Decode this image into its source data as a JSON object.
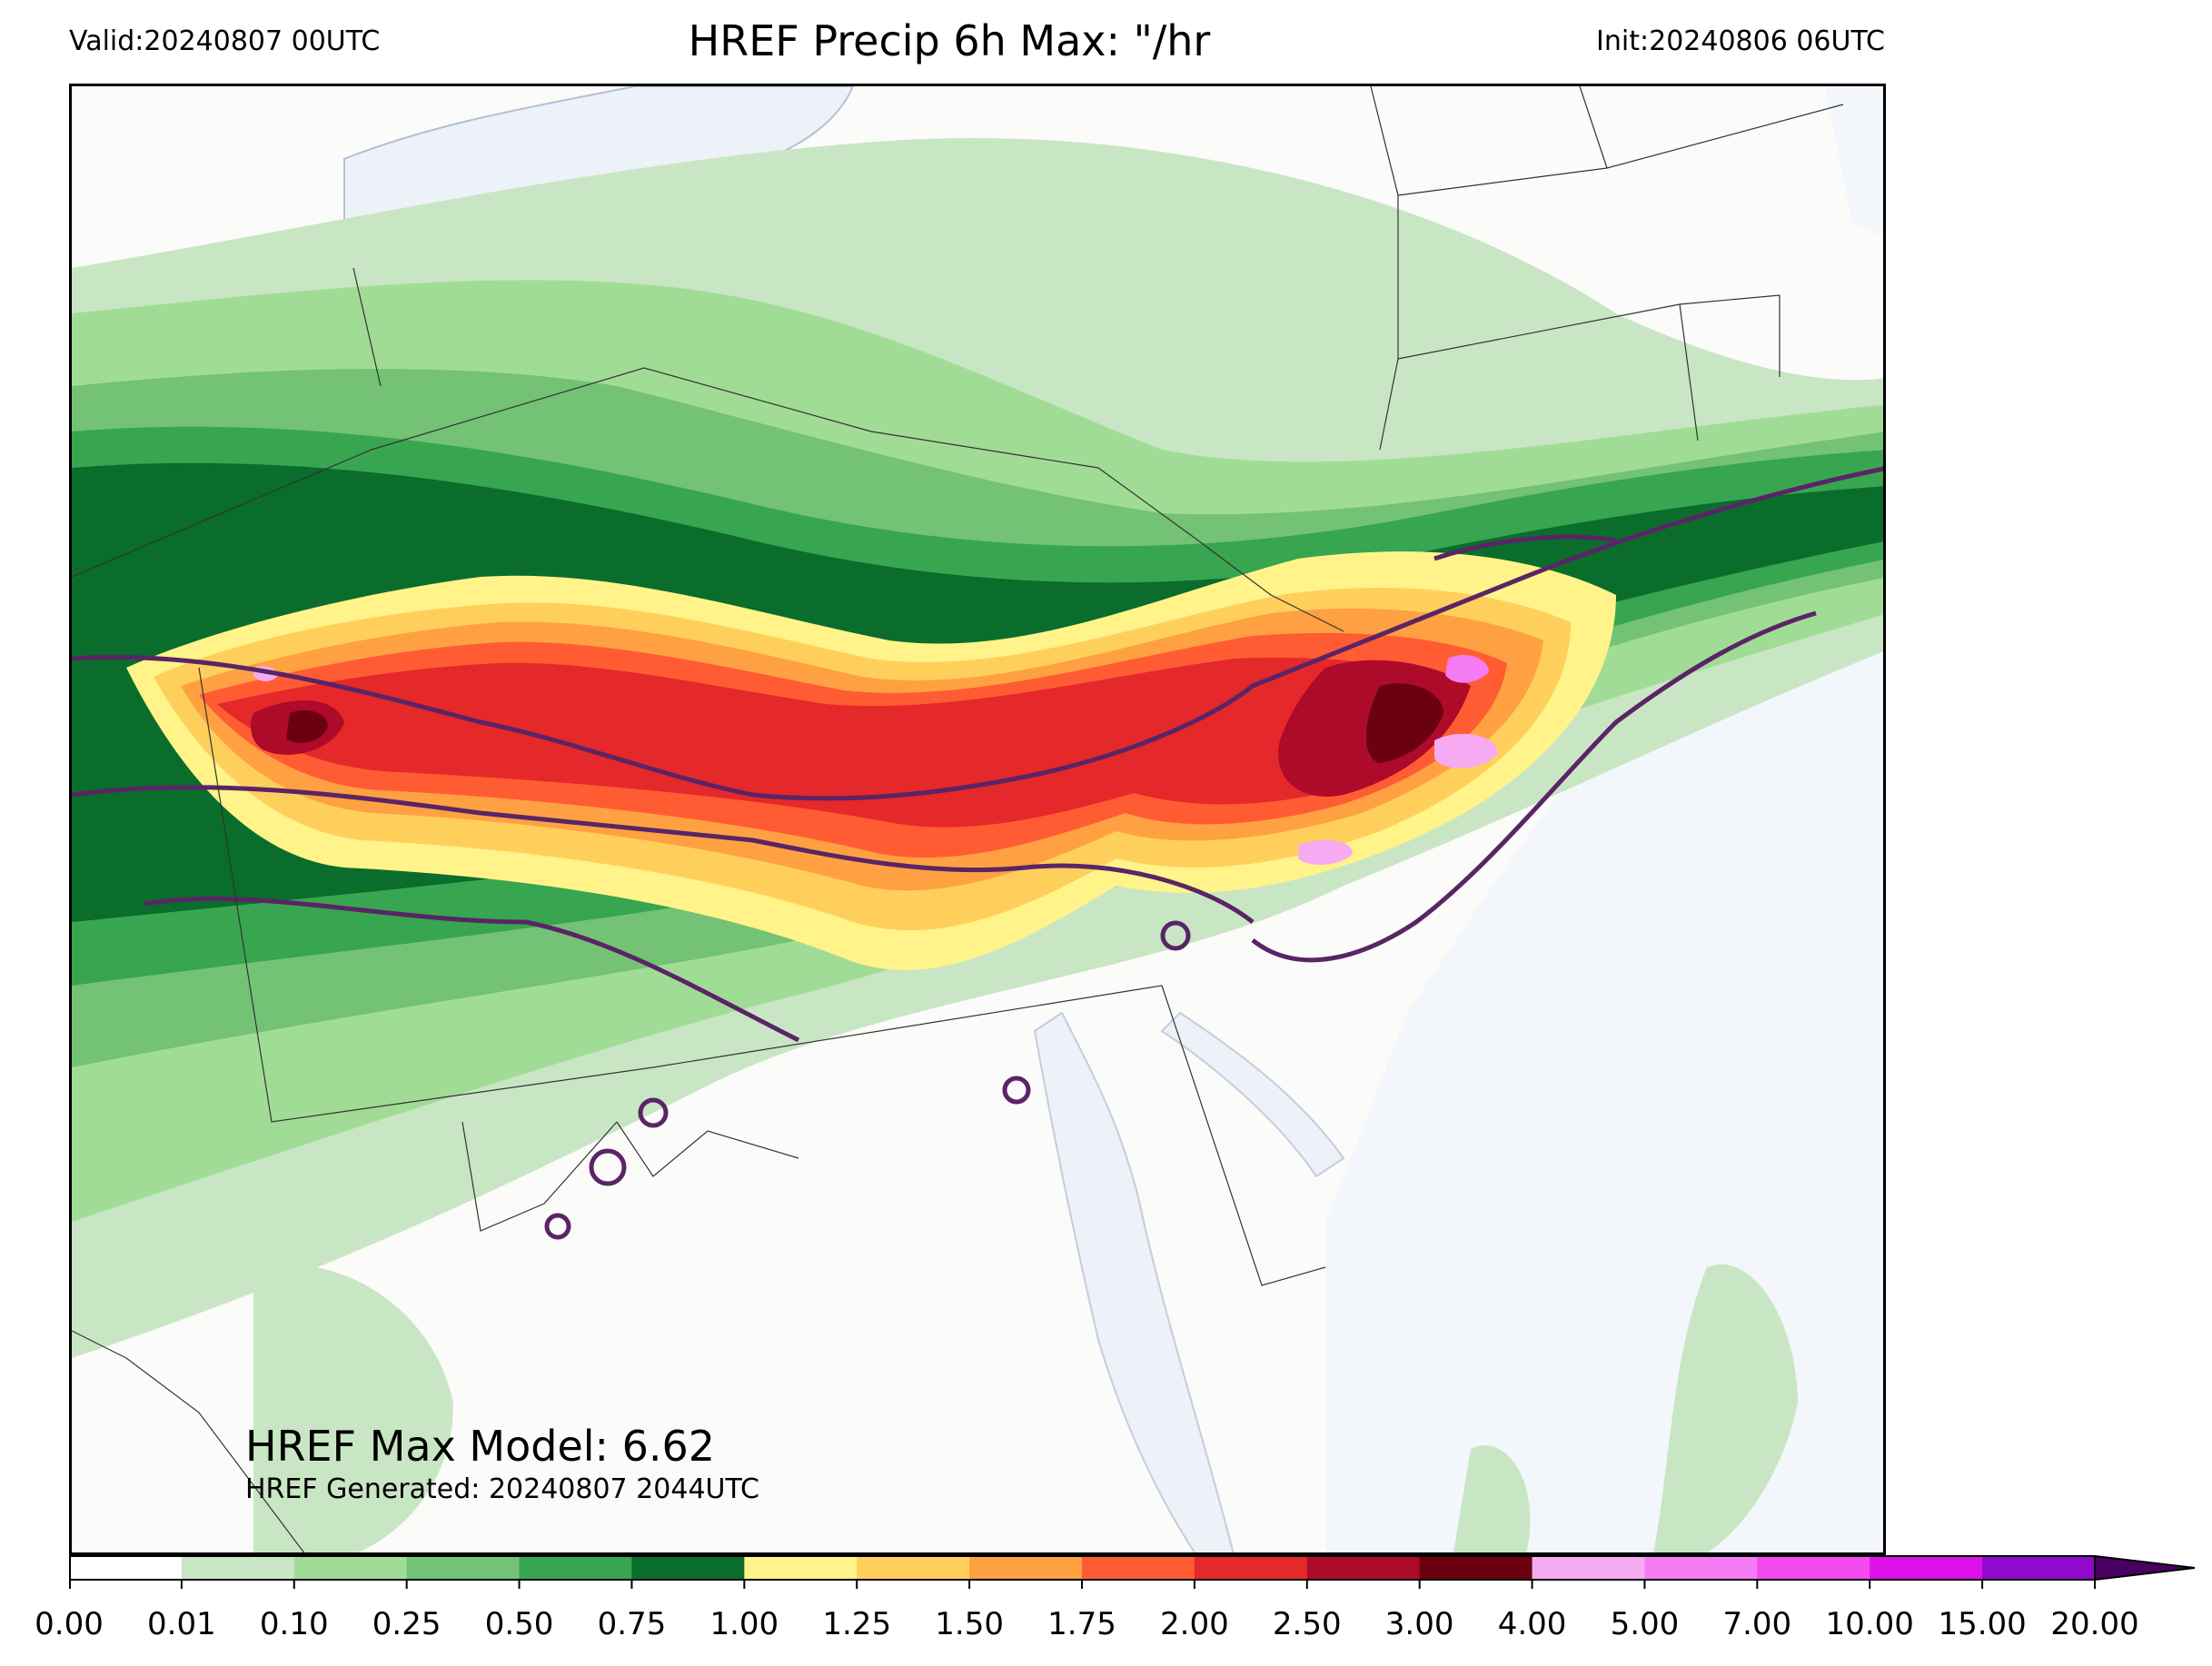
{
  "header": {
    "valid": "Valid:20240807 00UTC",
    "title": "HREF Precip 6h Max: \"/hr",
    "init": "Init:20240806 06UTC"
  },
  "annotations": {
    "max_model": "HREF Max Model: 6.62",
    "generated": "HREF Generated: 20240807 2044UTC"
  },
  "colorbar": {
    "ticks": [
      "0.00",
      "0.01",
      "0.10",
      "0.25",
      "0.50",
      "0.75",
      "1.00",
      "1.25",
      "1.50",
      "1.75",
      "2.00",
      "2.50",
      "3.00",
      "4.00",
      "5.00",
      "7.00",
      "10.00",
      "15.00",
      "20.00"
    ],
    "colors": [
      "#ffffff",
      "#c9e6c4",
      "#a1dc96",
      "#73c276",
      "#38a550",
      "#0a6d2c",
      "#fff38a",
      "#ffcf5c",
      "#ffa142",
      "#ff5c34",
      "#e52829",
      "#ae0a2a",
      "#6b0010",
      "#f5aaf2",
      "#f57cf5",
      "#f44bf0",
      "#de10ea",
      "#8f0acc"
    ],
    "extend_color": "#4a0060"
  },
  "map_colors": {
    "ocean": "#f3f6fb",
    "land": "#fbfbfa",
    "contour": "#5a2466"
  }
}
